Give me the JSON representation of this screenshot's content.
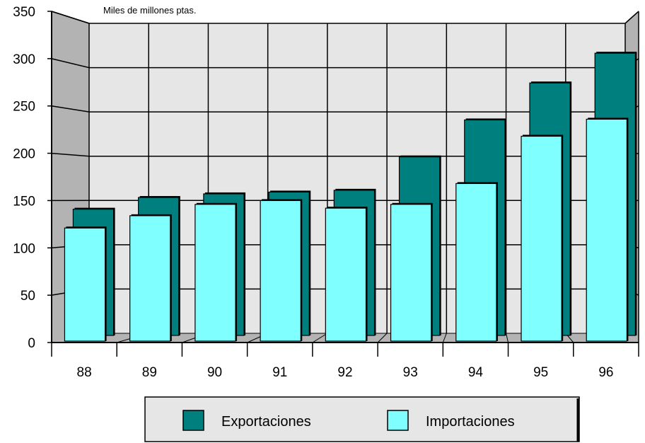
{
  "chart_data": {
    "type": "bar",
    "title": "",
    "unit_label": "Miles de millones ptas.",
    "xlabel": "",
    "ylabel": "",
    "categories": [
      "88",
      "89",
      "90",
      "91",
      "92",
      "93",
      "94",
      "95",
      "96"
    ],
    "series": [
      {
        "name": "Exportaciones",
        "color": "#007f7f",
        "values": [
          140,
          153,
          157,
          159,
          161,
          198,
          239,
          280,
          313
        ]
      },
      {
        "name": "Importaciones",
        "color": "#7fffff",
        "values": [
          121,
          134,
          146,
          150,
          142,
          146,
          168,
          218,
          236
        ]
      }
    ],
    "ylim": [
      0,
      350
    ],
    "yticks": [
      0,
      50,
      100,
      150,
      200,
      250,
      300,
      350
    ],
    "grid": true,
    "legend_position": "bottom"
  },
  "colors": {
    "back_wall": "#e6e6e6",
    "side_wall": "#b3b3b3",
    "axis": "#000000"
  }
}
